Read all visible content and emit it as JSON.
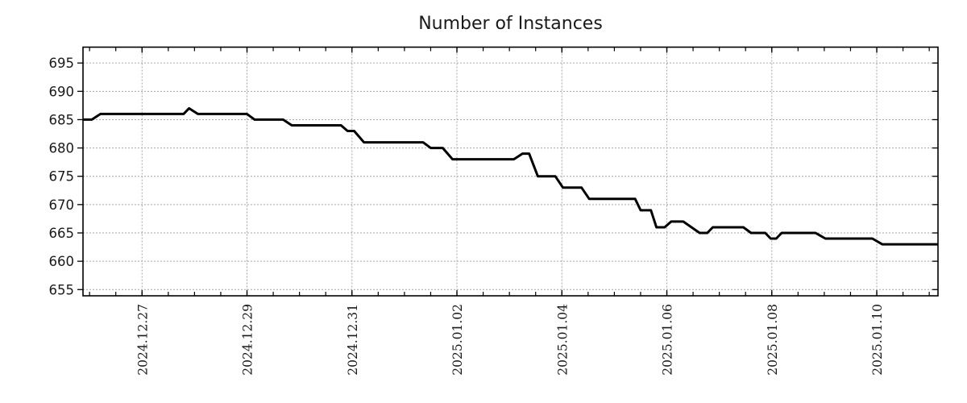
{
  "page": {
    "background": "#ffffff",
    "text_color": "#1a1a1a"
  },
  "chart_data": {
    "type": "line",
    "title": "Number of Instances",
    "xlabel": "",
    "ylabel": "",
    "legend": "none",
    "grid": {
      "show": true,
      "style": "dotted",
      "color": "#a6a6a6"
    },
    "x_axis": {
      "start": "2024-12-25 21:00",
      "end": "2025-01-11 04:00",
      "tick_dates": [
        "2024-12-27 00:00",
        "2024-12-29 00:00",
        "2024-12-31 00:00",
        "2025-01-02 00:00",
        "2025-01-04 00:00",
        "2025-01-06 00:00",
        "2025-01-08 00:00",
        "2025-01-10 00:00"
      ],
      "tick_labels": [
        "2024.12.27",
        "2024.12.29",
        "2024.12.31",
        "2025.01.02",
        "2025.01.04",
        "2025.01.06",
        "2025.01.08",
        "2025.01.10"
      ],
      "minor_tick_hours": 12
    },
    "y_axis": {
      "min": 653.9,
      "max": 697.8,
      "ticks": [
        655,
        660,
        665,
        670,
        675,
        680,
        685,
        690,
        695
      ]
    },
    "series": [
      {
        "name": "instances",
        "color": "#000000",
        "width": 3,
        "points": [
          [
            "2024-12-25 21:00",
            685
          ],
          [
            "2024-12-26 01:00",
            685
          ],
          [
            "2024-12-26 05:00",
            686
          ],
          [
            "2024-12-27 19:00",
            686
          ],
          [
            "2024-12-27 21:30",
            687
          ],
          [
            "2024-12-28 01:30",
            686
          ],
          [
            "2024-12-29 00:00",
            686
          ],
          [
            "2024-12-29 03:30",
            685
          ],
          [
            "2024-12-29 16:30",
            685
          ],
          [
            "2024-12-29 20:30",
            684
          ],
          [
            "2024-12-30 19:00",
            684
          ],
          [
            "2024-12-30 22:00",
            683
          ],
          [
            "2024-12-31 01:00",
            683
          ],
          [
            "2024-12-31 05:30",
            681
          ],
          [
            "2025-01-01 08:30",
            681
          ],
          [
            "2025-01-01 12:00",
            680
          ],
          [
            "2025-01-01 17:30",
            680
          ],
          [
            "2025-01-01 22:00",
            678
          ],
          [
            "2025-01-03 02:00",
            678
          ],
          [
            "2025-01-03 06:00",
            679
          ],
          [
            "2025-01-03 09:00",
            679
          ],
          [
            "2025-01-03 13:00",
            675
          ],
          [
            "2025-01-03 21:00",
            675
          ],
          [
            "2025-01-04 00:30",
            673
          ],
          [
            "2025-01-04 09:00",
            673
          ],
          [
            "2025-01-04 12:30",
            671
          ],
          [
            "2025-01-05 09:30",
            671
          ],
          [
            "2025-01-05 12:00",
            669
          ],
          [
            "2025-01-05 16:45",
            669
          ],
          [
            "2025-01-05 19:15",
            666
          ],
          [
            "2025-01-05 23:00",
            666
          ],
          [
            "2025-01-06 02:00",
            667
          ],
          [
            "2025-01-06 07:30",
            667
          ],
          [
            "2025-01-06 15:00",
            665
          ],
          [
            "2025-01-06 18:30",
            665
          ],
          [
            "2025-01-06 21:00",
            666
          ],
          [
            "2025-01-07 11:00",
            666
          ],
          [
            "2025-01-07 14:30",
            665
          ],
          [
            "2025-01-07 21:00",
            665
          ],
          [
            "2025-01-07 23:30",
            664
          ],
          [
            "2025-01-08 02:00",
            664
          ],
          [
            "2025-01-08 04:30",
            665
          ],
          [
            "2025-01-08 20:00",
            665
          ],
          [
            "2025-01-09 00:30",
            664
          ],
          [
            "2025-01-09 22:00",
            664
          ],
          [
            "2025-01-10 02:30",
            663
          ],
          [
            "2025-01-11 04:00",
            663
          ]
        ]
      }
    ]
  }
}
